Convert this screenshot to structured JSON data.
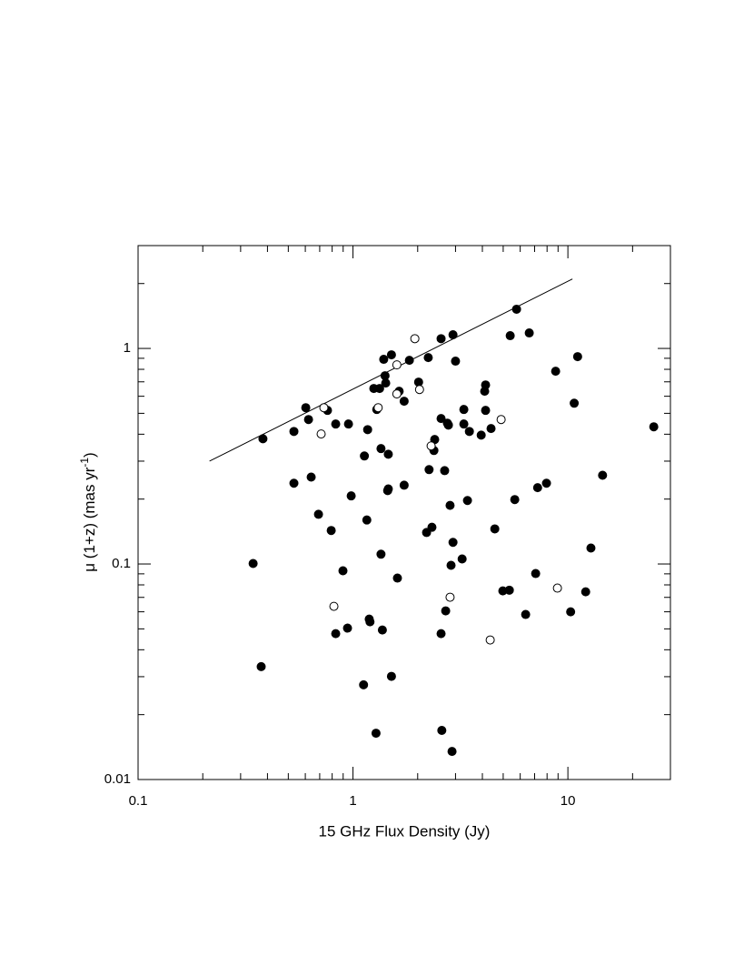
{
  "chart_data": {
    "type": "scatter",
    "x_label": "15 GHz Flux Density (Jy)",
    "y_label": {
      "text": "μ (1+z) (mas yr",
      "sup": "-1",
      "close": ")"
    },
    "log_x": true,
    "log_y": true,
    "xlim": [
      0.1,
      30
    ],
    "ylim": [
      0.01,
      3
    ],
    "xticks": [
      0.1,
      1,
      10
    ],
    "yticks": [
      0.01,
      0.1,
      1
    ],
    "xminorticks": [
      0.2,
      0.3,
      0.4,
      0.5,
      0.6,
      0.7,
      0.8,
      0.9,
      2,
      3,
      4,
      5,
      6,
      7,
      8,
      9,
      20
    ],
    "yminorticks": [
      0.02,
      0.03,
      0.04,
      0.05,
      0.06,
      0.07,
      0.08,
      0.09,
      0.2,
      0.3,
      0.4,
      0.5,
      0.6,
      0.7,
      0.8,
      0.9,
      2
    ],
    "line": {
      "color": "#000",
      "x": [
        0.215,
        10.5
      ],
      "y": [
        0.3,
        2.1
      ]
    },
    "series": [
      {
        "marker": "filled",
        "color": "#000",
        "x": [
          0.381,
          0.343,
          0.374,
          0.531,
          0.531,
          0.603,
          0.621,
          0.639,
          0.691,
          0.761,
          0.792,
          0.831,
          0.898,
          0.943,
          0.953,
          0.981,
          0.831,
          1.12,
          1.13,
          1.16,
          1.17,
          1.19,
          1.2,
          1.25,
          1.28,
          1.29,
          1.33,
          1.35,
          1.35,
          1.37,
          1.39,
          1.41,
          1.42,
          1.46,
          1.45,
          1.46,
          1.51,
          1.51,
          1.61,
          1.64,
          1.73,
          1.73,
          1.83,
          2.02,
          2.2,
          2.24,
          2.26,
          2.33,
          2.38,
          2.4,
          2.57,
          2.57,
          2.57,
          2.59,
          2.67,
          2.7,
          2.75,
          2.78,
          2.83,
          2.86,
          2.92,
          2.92,
          3.0,
          2.89,
          3.22,
          3.28,
          3.28,
          3.41,
          3.48,
          3.95,
          4.1,
          4.14,
          4.14,
          4.39,
          4.57,
          4.98,
          5.34,
          5.39,
          5.66,
          5.77,
          6.36,
          6.61,
          7.08,
          7.23,
          7.95,
          8.77,
          10.3,
          10.7,
          11.1,
          12.1,
          12.8,
          14.5,
          25.1
        ],
        "values": [
          0.381,
          0.1005,
          0.0334,
          0.412,
          0.237,
          0.531,
          0.468,
          0.253,
          0.17,
          0.516,
          0.143,
          0.446,
          0.093,
          0.0504,
          0.446,
          0.207,
          0.0475,
          0.0275,
          0.317,
          0.16,
          0.42,
          0.0555,
          0.0539,
          0.652,
          0.0164,
          0.521,
          0.652,
          0.343,
          0.111,
          0.0494,
          0.89,
          0.747,
          0.691,
          0.323,
          0.219,
          0.223,
          0.934,
          0.0301,
          0.086,
          0.633,
          0.569,
          0.232,
          0.881,
          0.698,
          0.14,
          0.907,
          0.274,
          0.148,
          0.336,
          0.378,
          1.11,
          0.473,
          0.0475,
          0.0169,
          0.271,
          0.0606,
          0.45,
          0.441,
          0.187,
          0.0986,
          0.126,
          1.157,
          0.873,
          0.0135,
          0.1055,
          0.521,
          0.446,
          0.197,
          0.412,
          0.396,
          0.633,
          0.677,
          0.516,
          0.425,
          0.1455,
          0.075,
          0.0756,
          1.146,
          0.199,
          1.52,
          0.0583,
          1.18,
          0.0903,
          0.226,
          0.237,
          0.784,
          0.06,
          0.557,
          0.916,
          0.0743,
          0.1186,
          0.258,
          0.433
        ]
      },
      {
        "marker": "open",
        "color": "#000",
        "x": [
          0.732,
          0.711,
          0.815,
          1.31,
          1.6,
          1.6,
          1.94,
          2.04,
          2.31,
          2.83,
          4.35,
          4.89,
          8.94
        ],
        "values": [
          0.531,
          0.401,
          0.0636,
          0.531,
          0.839,
          0.615,
          1.11,
          0.645,
          0.353,
          0.0701,
          0.0444,
          0.468,
          0.0773
        ]
      }
    ]
  }
}
